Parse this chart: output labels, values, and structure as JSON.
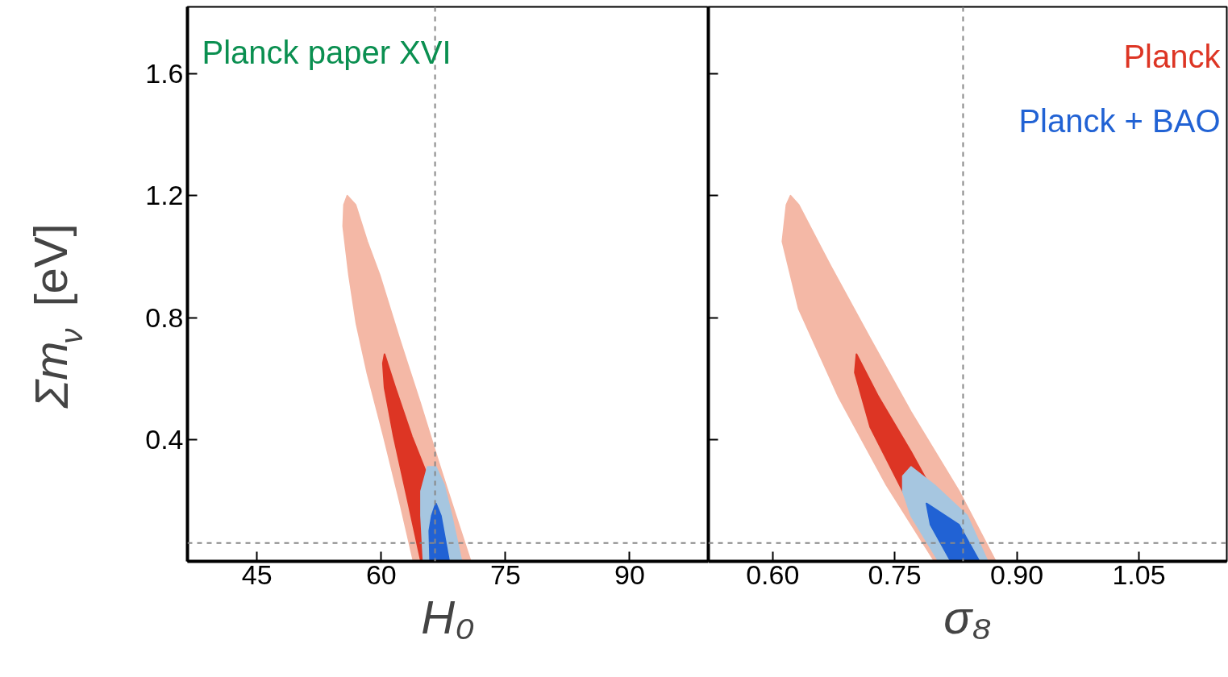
{
  "chart_data": [
    {
      "type": "area",
      "xlabel": "H₀",
      "ylabel": "Σm$_{ν}$ [eV]",
      "annotations": [
        "Planck paper XVI"
      ],
      "xlim": [
        36.6,
        99.5
      ],
      "xticks": [
        45,
        60,
        75,
        90
      ],
      "ylim": [
        0,
        1.82
      ],
      "yticks": [
        0.4,
        0.8,
        1.2,
        1.6
      ],
      "grid": false,
      "legend": false,
      "marker": "none",
      "ref_lines": [
        {
          "axis": "x",
          "value": 66.5,
          "color": "#888888",
          "line_style": "dashed"
        },
        {
          "axis": "y",
          "value": 0.06,
          "color": "#888888",
          "line_style": "dashed"
        }
      ],
      "series": [
        {
          "color": "#f4b8a6",
          "x": [
            55.9,
            56.9,
            58.3,
            59.8,
            62.2,
            64.7,
            67.1,
            69.0,
            70.8,
            63.9,
            62.2,
            60.3,
            58.3,
            57.0,
            56.1,
            55.4,
            55.5
          ],
          "values": [
            1.2,
            1.17,
            1.05,
            0.94,
            0.73,
            0.52,
            0.31,
            0.15,
            0,
            0,
            0.2,
            0.41,
            0.62,
            0.78,
            0.94,
            1.1,
            1.17
          ]
        },
        {
          "color": "#dd3524",
          "x": [
            60.4,
            61.7,
            63.7,
            65.6,
            68.1,
            68.5,
            64.8,
            63.2,
            61.5,
            60.4,
            60.2
          ],
          "values": [
            0.68,
            0.57,
            0.41,
            0.28,
            null,
            0,
            0,
            0.2,
            0.41,
            0.57,
            0.65
          ]
        },
        {
          "color": "#a6c6e0",
          "x": [
            65.0,
            65.6,
            66.6,
            67.6,
            68.5,
            69.7,
            65.1,
            64.8,
            64.8
          ],
          "values": [
            0.25,
            0.31,
            0.31,
            0.25,
            0.15,
            0,
            0,
            0.15,
            0.23
          ]
        },
        {
          "color": "#2162d4",
          "x": [
            66.1,
            66.6,
            67.2,
            68.2,
            65.9,
            65.8
          ],
          "values": [
            0.15,
            0.19,
            0.15,
            0,
            0,
            0.1
          ]
        }
      ]
    },
    {
      "type": "area",
      "xlabel": "σ₈",
      "tick_labels": "x",
      "xlim": [
        0.521,
        1.158
      ],
      "xticks": [
        {
          "value": 0.6,
          "label": "0.60"
        },
        {
          "value": 0.75,
          "label": "0.75"
        },
        {
          "value": 0.9,
          "label": "0.90"
        },
        1.05
      ],
      "ylim": [
        0,
        1.82
      ],
      "yticks": [
        0.4,
        0.8,
        1.2,
        1.6
      ],
      "grid": false,
      "legend": "top right",
      "marker": "none",
      "ref_lines": [
        {
          "axis": "x",
          "value": 0.834,
          "color": "#888888",
          "line_style": "dashed"
        },
        {
          "axis": "y",
          "value": 0.06,
          "color": "#888888",
          "line_style": "dashed"
        }
      ],
      "series": [
        {
          "color": "#f4b8a6",
          "x": [
            0.622,
            0.632,
            0.671,
            0.72,
            0.77,
            0.829,
            0.874,
            0.799,
            0.74,
            0.681,
            0.632,
            0.612,
            0.617
          ],
          "values": [
            1.2,
            1.17,
            0.97,
            0.73,
            0.49,
            0.23,
            0,
            0,
            0.25,
            0.54,
            0.83,
            1.05,
            1.17
          ]
        },
        {
          "name": "Planck",
          "color": "#dd3524",
          "x": [
            0.703,
            0.73,
            0.77,
            0.819,
            0.844,
            0.809,
            0.76,
            0.72,
            0.701
          ],
          "values": [
            0.68,
            0.54,
            0.36,
            null,
            0,
            0,
            0.23,
            0.44,
            0.62
          ]
        },
        {
          "color": "#a6c6e0",
          "x": [
            0.76,
            0.77,
            0.799,
            0.839,
            0.864,
            0.804,
            0.77,
            0.76
          ],
          "values": [
            0.28,
            0.31,
            0.25,
            0.15,
            0,
            0,
            0.15,
            0.23
          ]
        },
        {
          "name": "Planck + BAO",
          "color": "#2162d4",
          "x": [
            0.789,
            0.829,
            0.854,
            0.819,
            0.794
          ],
          "values": [
            0.19,
            0.12,
            0,
            0,
            0.12
          ]
        }
      ]
    }
  ]
}
